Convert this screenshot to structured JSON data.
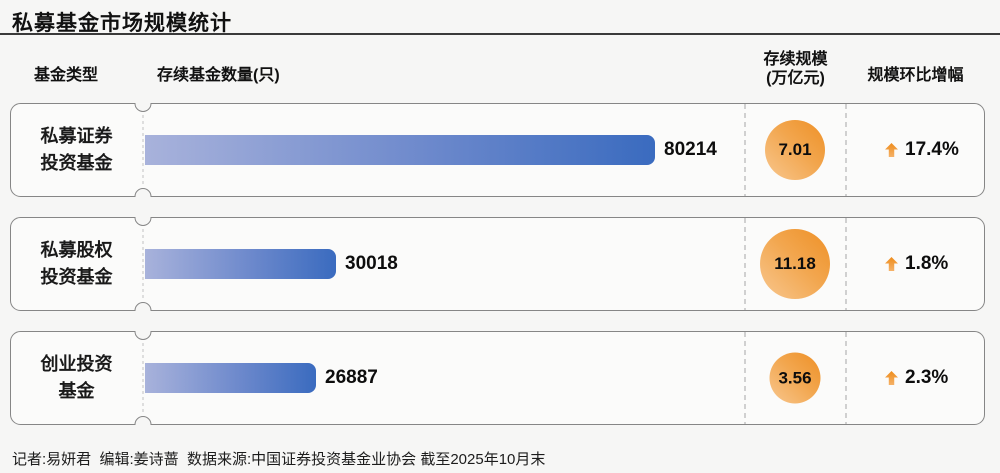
{
  "title": "私募基金市场规模统计",
  "columns": {
    "type": "基金类型",
    "count": "存续基金数量(只)",
    "scale_line1": "存续规模",
    "scale_line2": "(万亿元)",
    "growth": "规模环比增幅"
  },
  "rows": [
    {
      "label_line1": "私募证券",
      "label_line2": "投资基金",
      "count": 80214,
      "scale": "7.01",
      "growth": "17.4%"
    },
    {
      "label_line1": "私募股权",
      "label_line2": "投资基金",
      "count": 30018,
      "scale": "11.18",
      "growth": "1.8%"
    },
    {
      "label_line1": "创业投资",
      "label_line2": "基金",
      "count": 26887,
      "scale": "3.56",
      "growth": "2.3%"
    }
  ],
  "footer": "记者:易妍君  编辑:姜诗蔷  数据来源:中国证券投资基金业协会 截至2025年10月末",
  "colors": {
    "background": "#f6f6f5",
    "card_fill": "#fbfbfa",
    "card_border": "#868686",
    "bar_gradient_start": "#a8b2db",
    "bar_gradient_end": "#3a6bbf",
    "bubble_gradient_light": "#f8c78f",
    "bubble_gradient_dark": "#ee9026",
    "arrow_orange": "#ee8c1b",
    "title_rule": "#3a3a3a"
  },
  "chart_data": {
    "type": "bar",
    "title": "私募基金市场规模统计",
    "categories": [
      "私募证券投资基金",
      "私募股权投资基金",
      "创业投资基金"
    ],
    "series": [
      {
        "name": "存续基金数量(只)",
        "values": [
          80214,
          30018,
          26887
        ]
      },
      {
        "name": "存续规模(万亿元)",
        "values": [
          7.01,
          11.18,
          3.56
        ]
      },
      {
        "name": "规模环比增幅(%)",
        "values": [
          17.4,
          1.8,
          2.3
        ]
      }
    ],
    "orientation": "horizontal",
    "grid": false,
    "legend_position": "none",
    "xlabel": "",
    "ylabel": "",
    "source": "中国证券投资基金业协会",
    "as_of": "截至2025年10月末"
  }
}
